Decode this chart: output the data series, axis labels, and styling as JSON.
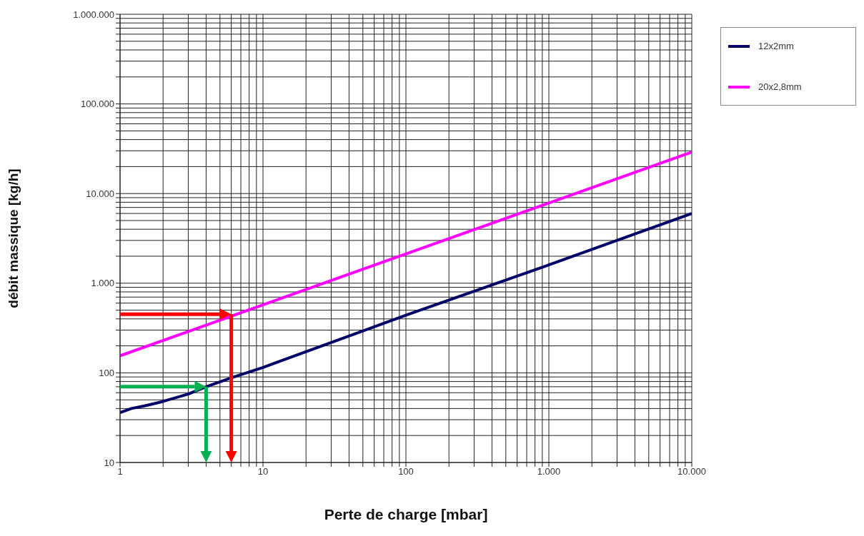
{
  "chart_data": {
    "type": "line",
    "xlabel": "Perte de charge [mbar]",
    "ylabel": "débit massique   [kg/h]",
    "log": "xy",
    "grid": true,
    "legend": "top right",
    "marker": "none",
    "line_style": "solid",
    "xlim": [
      1,
      10000
    ],
    "ylim": [
      10,
      1000000
    ],
    "xticks": [
      {
        "value": 1,
        "label": "1"
      },
      {
        "value": 2,
        "label": null
      },
      {
        "value": 3,
        "label": null
      },
      {
        "value": 4,
        "label": null
      },
      {
        "value": 5,
        "label": null
      },
      {
        "value": 6,
        "label": null
      },
      {
        "value": 7,
        "label": null
      },
      {
        "value": 8,
        "label": null
      },
      {
        "value": 9,
        "label": null
      },
      {
        "value": 10,
        "label": "10"
      },
      {
        "value": 20,
        "label": null
      },
      {
        "value": 30,
        "label": null
      },
      {
        "value": 40,
        "label": null
      },
      {
        "value": 50,
        "label": null
      },
      {
        "value": 60,
        "label": null
      },
      {
        "value": 70,
        "label": null
      },
      {
        "value": 80,
        "label": null
      },
      {
        "value": 90,
        "label": null
      },
      {
        "value": 100,
        "label": "100"
      },
      {
        "value": 200,
        "label": null
      },
      {
        "value": 300,
        "label": null
      },
      {
        "value": 400,
        "label": null
      },
      {
        "value": 500,
        "label": null
      },
      {
        "value": 600,
        "label": null
      },
      {
        "value": 700,
        "label": null
      },
      {
        "value": 800,
        "label": null
      },
      {
        "value": 900,
        "label": null
      },
      {
        "value": 1000,
        "label": "1.000"
      },
      {
        "value": 2000,
        "label": null
      },
      {
        "value": 3000,
        "label": null
      },
      {
        "value": 4000,
        "label": null
      },
      {
        "value": 5000,
        "label": null
      },
      {
        "value": 6000,
        "label": null
      },
      {
        "value": 7000,
        "label": null
      },
      {
        "value": 8000,
        "label": null
      },
      {
        "value": 9000,
        "label": null
      },
      {
        "value": 10000,
        "label": "10.000"
      }
    ],
    "yticks": [
      {
        "value": 10,
        "label": "10"
      },
      {
        "value": 20,
        "label": null
      },
      {
        "value": 30,
        "label": null
      },
      {
        "value": 40,
        "label": null
      },
      {
        "value": 50,
        "label": null
      },
      {
        "value": 60,
        "label": null
      },
      {
        "value": 70,
        "label": null
      },
      {
        "value": 80,
        "label": null
      },
      {
        "value": 90,
        "label": null
      },
      {
        "value": 100,
        "label": "100"
      },
      {
        "value": 200,
        "label": null
      },
      {
        "value": 300,
        "label": null
      },
      {
        "value": 400,
        "label": null
      },
      {
        "value": 500,
        "label": null
      },
      {
        "value": 600,
        "label": null
      },
      {
        "value": 700,
        "label": null
      },
      {
        "value": 800,
        "label": null
      },
      {
        "value": 900,
        "label": null
      },
      {
        "value": 1000,
        "label": "1.000"
      },
      {
        "value": 2000,
        "label": null
      },
      {
        "value": 3000,
        "label": null
      },
      {
        "value": 4000,
        "label": null
      },
      {
        "value": 5000,
        "label": null
      },
      {
        "value": 6000,
        "label": null
      },
      {
        "value": 7000,
        "label": null
      },
      {
        "value": 8000,
        "label": null
      },
      {
        "value": 9000,
        "label": null
      },
      {
        "value": 10000,
        "label": "10.000"
      },
      {
        "value": 20000,
        "label": null
      },
      {
        "value": 30000,
        "label": null
      },
      {
        "value": 40000,
        "label": null
      },
      {
        "value": 50000,
        "label": null
      },
      {
        "value": 60000,
        "label": null
      },
      {
        "value": 70000,
        "label": null
      },
      {
        "value": 80000,
        "label": null
      },
      {
        "value": 90000,
        "label": null
      },
      {
        "value": 100000,
        "label": "100.000"
      },
      {
        "value": 200000,
        "label": null
      },
      {
        "value": 300000,
        "label": null
      },
      {
        "value": 400000,
        "label": null
      },
      {
        "value": 500000,
        "label": null
      },
      {
        "value": 600000,
        "label": null
      },
      {
        "value": 700000,
        "label": null
      },
      {
        "value": 800000,
        "label": null
      },
      {
        "value": 900000,
        "label": null
      },
      {
        "value": 1000000,
        "label": "1.000.000"
      }
    ],
    "series": [
      {
        "name": "12x2mm",
        "color": "#000066",
        "x": [
          1,
          1.2,
          1.5,
          2,
          3,
          4,
          6,
          10,
          100,
          1000,
          10000
        ],
        "values": [
          36,
          40,
          43,
          48,
          58,
          70,
          88,
          115,
          440,
          1600,
          6000
        ]
      },
      {
        "name": "20x2,8mm",
        "color": "#ff00ff",
        "x": [
          1,
          10000
        ],
        "values": [
          155,
          29000
        ]
      }
    ]
  }
}
